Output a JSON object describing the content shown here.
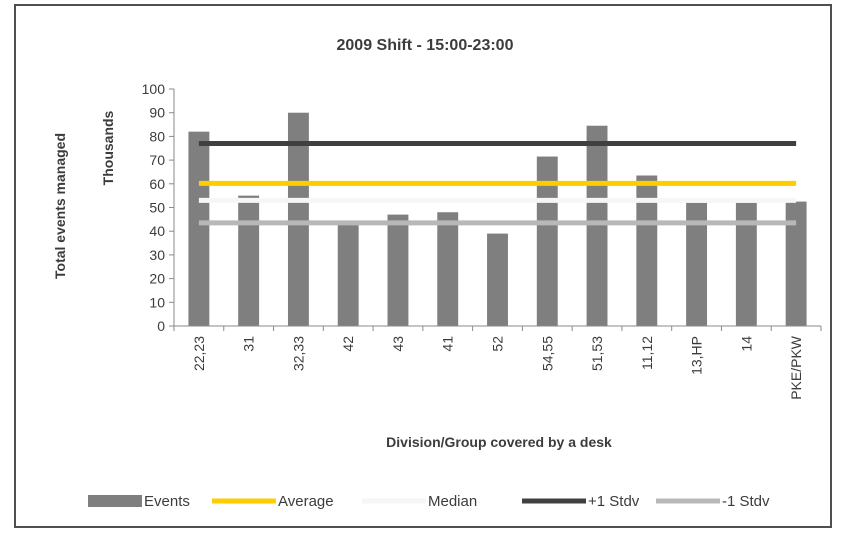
{
  "chart_data": {
    "type": "bar",
    "title": "2009 Shift - 15:00-23:00",
    "ylabel": "Total events managed",
    "yunit": "Thousands",
    "xlabel": "Division/Group covered by a desk",
    "categories": [
      "22,23",
      "31",
      "32,33",
      "42",
      "43",
      "41",
      "52",
      "54,55",
      "51,53",
      "11,12",
      "13,HP",
      "14",
      "PKE/PKW"
    ],
    "series": [
      {
        "name": "Events",
        "type": "bar",
        "values": [
          82,
          55,
          90,
          43,
          47,
          48,
          39,
          71.5,
          84.5,
          63.5,
          52,
          52,
          52.5
        ],
        "color": "#7f7f7f"
      },
      {
        "name": "Average",
        "type": "line",
        "value": 60.2,
        "color": "#ffcc00"
      },
      {
        "name": "Median",
        "type": "line",
        "value": 53,
        "color": "#f6f6f6"
      },
      {
        "name": "+1 Stdv",
        "type": "line",
        "value": 77,
        "color": "#404040"
      },
      {
        "name": "-1 Stdv",
        "type": "line",
        "value": 43.5,
        "color": "#b8b8b8"
      }
    ],
    "ylim": [
      0,
      100
    ],
    "yticks": [
      0,
      10,
      20,
      30,
      40,
      50,
      60,
      70,
      80,
      90,
      100
    ],
    "legend_position": "bottom",
    "grid": false
  }
}
